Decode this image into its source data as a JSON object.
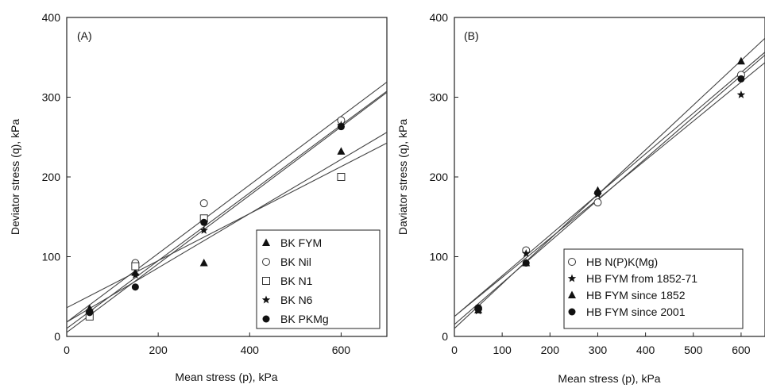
{
  "chart_data": [
    {
      "type": "scatter",
      "panel_label": "(A)",
      "xlabel": "Mean stress (p), kPa",
      "ylabel": "Deviator stress (q), kPa",
      "xlim": [
        0,
        700
      ],
      "ylim": [
        0,
        400
      ],
      "xticks": [
        0,
        200,
        400,
        600
      ],
      "yticks": [
        0,
        100,
        200,
        300,
        400
      ],
      "legend_position": "bottom-right",
      "grid": false,
      "series": [
        {
          "name": "BK FYM",
          "marker": "triangle",
          "x": [
            50,
            150,
            300,
            600
          ],
          "y": [
            35,
            80,
            92,
            232
          ],
          "fit": [
            18,
            0.34
          ]
        },
        {
          "name": "BK Nil",
          "marker": "circle-open",
          "x": [
            50,
            150,
            300,
            600
          ],
          "y": [
            30,
            92,
            167,
            271
          ],
          "fit": [
            18,
            0.43
          ]
        },
        {
          "name": "BK N1",
          "marker": "square-open",
          "x": [
            50,
            150,
            300,
            600
          ],
          "y": [
            25,
            88,
            148,
            200
          ],
          "fit": [
            36,
            0.295
          ]
        },
        {
          "name": "BK N6",
          "marker": "star",
          "x": [
            50,
            150,
            300,
            600
          ],
          "y": [
            32,
            77,
            133,
            265
          ],
          "fit": [
            10,
            0.425
          ]
        },
        {
          "name": "BK PKMg",
          "marker": "circle-filled",
          "x": [
            50,
            150,
            300,
            600
          ],
          "y": [
            30,
            62,
            143,
            263
          ],
          "fit": [
            5,
            0.43
          ]
        }
      ]
    },
    {
      "type": "scatter",
      "panel_label": "(B)",
      "xlabel": "Mean stress (p), kPa",
      "ylabel": "Daviator stress (q), kPa",
      "xlim": [
        0,
        650
      ],
      "ylim": [
        0,
        400
      ],
      "xticks": [
        0,
        100,
        200,
        300,
        400,
        500,
        600
      ],
      "yticks": [
        0,
        100,
        200,
        300,
        400
      ],
      "legend_position": "bottom-right",
      "grid": false,
      "series": [
        {
          "name": "HB N(P)K(Mg)",
          "marker": "circle-open",
          "x": [
            50,
            150,
            300,
            600
          ],
          "y": [
            35,
            108,
            168,
            328
          ],
          "fit": [
            25,
            0.51
          ]
        },
        {
          "name": "HB FYM from 1852-71",
          "marker": "star",
          "x": [
            50,
            150,
            300,
            600
          ],
          "y": [
            32,
            104,
            178,
            303
          ],
          "fit": [
            25,
            0.49
          ]
        },
        {
          "name": "HB FYM since 1852",
          "marker": "triangle",
          "x": [
            50,
            150,
            300,
            600
          ],
          "y": [
            33,
            92,
            183,
            345
          ],
          "fit": [
            10,
            0.56
          ]
        },
        {
          "name": "HB FYM since 2001",
          "marker": "circle-filled",
          "x": [
            50,
            150,
            300,
            600
          ],
          "y": [
            36,
            92,
            180,
            323
          ],
          "fit": [
            15,
            0.52
          ]
        }
      ]
    }
  ]
}
